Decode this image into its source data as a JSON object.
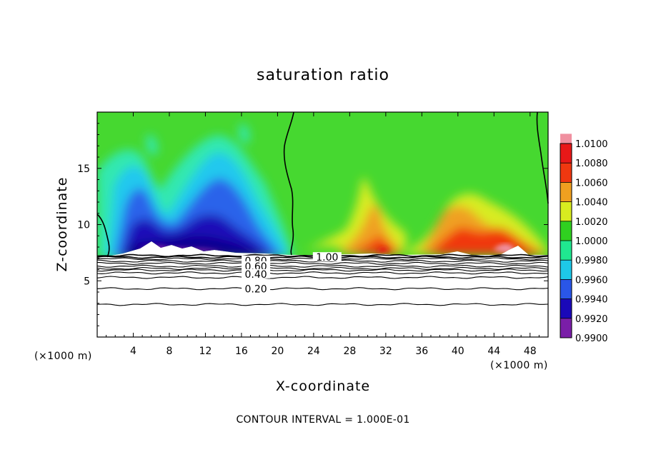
{
  "chart_data": {
    "type": "heatmap",
    "title": "saturation ratio",
    "xlabel": "X-coordinate",
    "ylabel": "Z-coordinate",
    "x_unit": "(×1000 m)",
    "z_unit": "(×1000 m)",
    "xlim": [
      0,
      50
    ],
    "ylim": [
      0,
      20
    ],
    "x_ticks": [
      4,
      8,
      12,
      16,
      20,
      24,
      28,
      32,
      36,
      40,
      44,
      48
    ],
    "y_ticks": [
      5,
      10,
      15
    ],
    "colorbar": {
      "levels": [
        "0.9900",
        "0.9920",
        "0.9940",
        "0.9960",
        "0.9980",
        "1.0000",
        "1.0020",
        "1.0040",
        "1.0060",
        "1.0080",
        "1.0100"
      ],
      "colors": [
        "#7a1ea8",
        "#1a08b8",
        "#2a56e8",
        "#1ec8e8",
        "#20e890",
        "#30d020",
        "#d8ec20",
        "#f0a020",
        "#f03810",
        "#e81818",
        "#f090a0"
      ]
    },
    "contour_lines": [
      {
        "label": "1.00",
        "label_x": 25.5,
        "label_z": 7.1,
        "z": 7.1
      },
      {
        "label": "0.80",
        "label_x": 17.6,
        "label_z": 6.8,
        "z": 6.75
      },
      {
        "label": "0.60",
        "label_x": 17.6,
        "label_z": 6.3,
        "z": 6.3
      },
      {
        "label": "0.40",
        "label_x": 17.6,
        "label_z": 5.6,
        "z": 5.7
      },
      {
        "label": "0.20",
        "label_x": 17.6,
        "label_z": 4.3,
        "z": 4.3
      },
      {
        "label": "",
        "z": 2.9
      }
    ],
    "contour_interval": "CONTOUR INTERVAL = 1.000E-01"
  }
}
